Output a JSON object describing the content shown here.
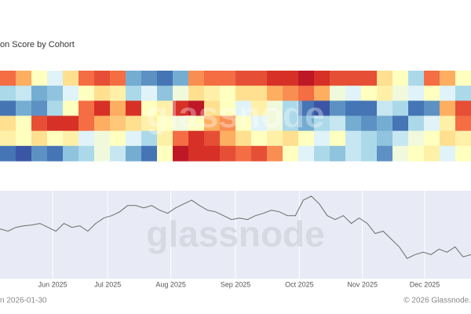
{
  "title": "on Score by Cohort",
  "watermark": "glassnode",
  "footer_left": "n 2026-01-30",
  "footer_right": "© 2026 Glassnode.",
  "chart_data": [
    {
      "type": "heatmap",
      "zlim": [
        0,
        1
      ],
      "colorscale": [
        "#313695",
        "#4575b4",
        "#74add1",
        "#abd9e9",
        "#e0f3f8",
        "#ffffbf",
        "#fee090",
        "#fdae61",
        "#f46d43",
        "#d73027",
        "#a50026"
      ],
      "z": [
        [
          0.8,
          0.7,
          0.5,
          0.4,
          0.6,
          0.8,
          0.85,
          0.8,
          0.2,
          0.15,
          0.1,
          0.2,
          0.75,
          0.8,
          0.8,
          0.85,
          0.85,
          0.9,
          0.9,
          0.95,
          0.9,
          0.85,
          0.85,
          0.85,
          0.6,
          0.5,
          0.3,
          0.8,
          0.7,
          0.5
        ],
        [
          0.3,
          0.35,
          0.2,
          0.25,
          0.4,
          0.5,
          0.6,
          0.55,
          0.3,
          0.4,
          0.25,
          0.45,
          0.6,
          0.55,
          0.5,
          0.6,
          0.6,
          0.7,
          0.75,
          0.8,
          0.7,
          0.45,
          0.4,
          0.5,
          0.55,
          0.45,
          0.4,
          0.5,
          0.4,
          0.3
        ],
        [
          0.1,
          0.2,
          0.15,
          0.3,
          0.5,
          0.8,
          0.9,
          0.7,
          0.9,
          0.5,
          0.55,
          0.9,
          0.95,
          0.6,
          0.5,
          0.4,
          0.55,
          0.45,
          0.3,
          0.1,
          0.05,
          0.15,
          0.1,
          0.1,
          0.35,
          0.3,
          0.1,
          0.15,
          0.7,
          0.85
        ],
        [
          0.6,
          0.5,
          0.85,
          0.9,
          0.9,
          0.8,
          0.7,
          0.65,
          0.6,
          0.55,
          0.5,
          0.45,
          0.5,
          0.7,
          0.75,
          0.5,
          0.4,
          0.45,
          0.3,
          0.2,
          0.3,
          0.35,
          0.2,
          0.15,
          0.2,
          0.1,
          0.3,
          0.4,
          0.55,
          0.8
        ],
        [
          0.55,
          0.5,
          0.6,
          0.5,
          0.55,
          0.4,
          0.45,
          0.5,
          0.4,
          0.3,
          0.55,
          0.8,
          0.9,
          0.85,
          0.7,
          0.6,
          0.5,
          0.55,
          0.6,
          0.5,
          0.4,
          0.5,
          0.35,
          0.3,
          0.25,
          0.35,
          0.45,
          0.5,
          0.6,
          0.55
        ],
        [
          0.1,
          0.05,
          0.15,
          0.1,
          0.25,
          0.3,
          0.45,
          0.35,
          0.2,
          0.1,
          0.5,
          0.95,
          0.9,
          0.9,
          0.85,
          0.8,
          0.85,
          0.75,
          0.5,
          0.4,
          0.3,
          0.25,
          0.35,
          0.3,
          0.15,
          0.45,
          0.5,
          0.55,
          0.4,
          0.5
        ]
      ]
    },
    {
      "type": "line",
      "color": "#6b6b6b",
      "xlim": [
        0,
        59
      ],
      "xticks": [
        {
          "value": 6.6,
          "label": "Jun 2025"
        },
        {
          "value": 13.5,
          "label": "Jul 2025"
        },
        {
          "value": 21.4,
          "label": "Aug 2025"
        },
        {
          "value": 29.5,
          "label": "Sep 2025"
        },
        {
          "value": 37.5,
          "label": "Oct 2025"
        },
        {
          "value": 45.4,
          "label": "Nov 2025"
        },
        {
          "value": 53.2,
          "label": "Dec 2025"
        }
      ],
      "ylim": [
        72000,
        128500
      ],
      "grid": true,
      "values": [
        104000,
        102500,
        105000,
        106000,
        106500,
        107500,
        105000,
        102500,
        107500,
        105000,
        106000,
        102500,
        107500,
        111000,
        112500,
        115000,
        119000,
        119000,
        117500,
        119000,
        116000,
        114000,
        117500,
        120000,
        122500,
        119000,
        116000,
        115000,
        112500,
        110000,
        111000,
        110000,
        112500,
        114000,
        116000,
        115000,
        112500,
        112500,
        122500,
        125000,
        120000,
        112500,
        110000,
        112500,
        107500,
        111000,
        107500,
        101000,
        102500,
        97500,
        92500,
        85000,
        87500,
        89000,
        87500,
        91000,
        89000,
        92500,
        86000,
        87500
      ]
    }
  ]
}
